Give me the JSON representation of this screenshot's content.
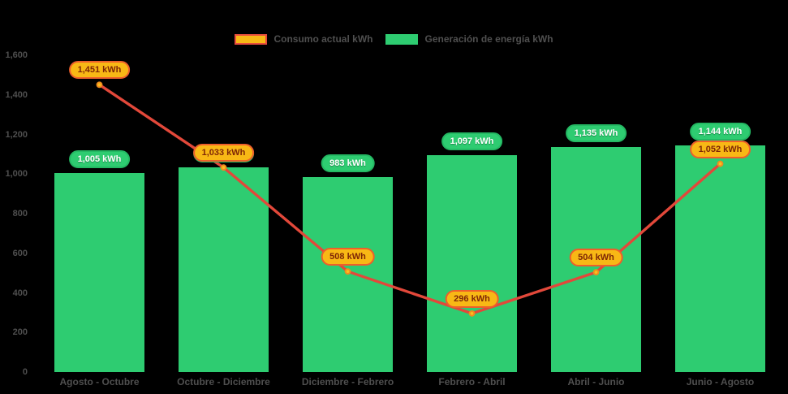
{
  "background": "#000000",
  "colors": {
    "bar": "#2ecc71",
    "bar_badge_bg": "#2ecc71",
    "bar_badge_border": "#24b863",
    "bar_badge_text": "#ffffff",
    "line": "#e2483a",
    "point_fill": "#fcbe1d",
    "point_border": "#f08c1e",
    "line_badge_bg": "#f8b815",
    "line_badge_border": "#ed5f2b",
    "line_badge_text": "#7e2606",
    "axis_text": "#4f4f4f"
  },
  "legend": {
    "items": [
      {
        "label": "Consumo actual kWh",
        "swatch_fill": "#f8b815",
        "swatch_border": "#e84c3d"
      },
      {
        "label": "Generación de energía kWh",
        "swatch_fill": "#2ecc71",
        "swatch_border": "#2ecc71"
      }
    ]
  },
  "chart_data": {
    "type": "bar+line",
    "categories": [
      "Agosto - Octubre",
      "Octubre - Diciembre",
      "Diciembre - Febrero",
      "Febrero - Abril",
      "Abril - Junio",
      "Junio - Agosto"
    ],
    "series": [
      {
        "name": "Consumo actual kWh",
        "type": "line",
        "values": [
          1451,
          1033,
          508,
          296,
          504,
          1052
        ]
      },
      {
        "name": "Generación de energía kWh",
        "type": "bar",
        "values": [
          1005,
          1033,
          983,
          1097,
          1135,
          1144
        ]
      }
    ],
    "ylim": [
      0,
      1600
    ],
    "ytick_step": 200,
    "grid": false,
    "legend_position": "top-center",
    "value_label_suffix": " kWh",
    "xlabel": "",
    "ylabel": ""
  }
}
